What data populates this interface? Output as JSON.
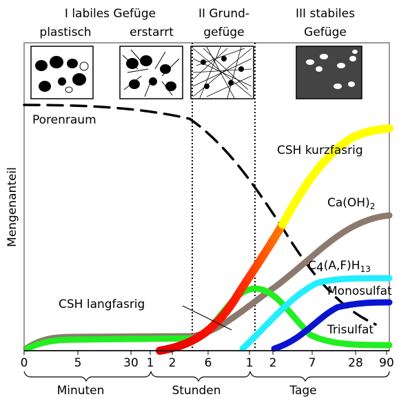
{
  "header": {
    "phase1": "I labiles Gefüge",
    "phase1a": "plastisch",
    "phase1b": "erstarrt",
    "phase2a": "II Grund-",
    "phase2b": "gefüge",
    "phase3a": "III stabiles",
    "phase3b": "Gefüge"
  },
  "labels": {
    "porenraum": "Porenraum",
    "csh_kurz": "CSH kurzfasrig",
    "caoh": {
      "main": "Ca(OH)",
      "sub": "2"
    },
    "c4af": {
      "main1": "C",
      "sub1": "4",
      "main2": "(A,F)H",
      "sub2": "13"
    },
    "monosulfat": "Monosulfat",
    "csh_lang": "CSH langfasrig",
    "trisulfat": "Trisulfat",
    "y_axis": "Mengenanteil"
  },
  "ticks": [
    "0",
    "5",
    "30",
    "1",
    "2",
    "6",
    "1",
    "2",
    "7",
    "28",
    "90"
  ],
  "units": [
    "Minuten",
    "Stunden",
    "Tage"
  ]
}
